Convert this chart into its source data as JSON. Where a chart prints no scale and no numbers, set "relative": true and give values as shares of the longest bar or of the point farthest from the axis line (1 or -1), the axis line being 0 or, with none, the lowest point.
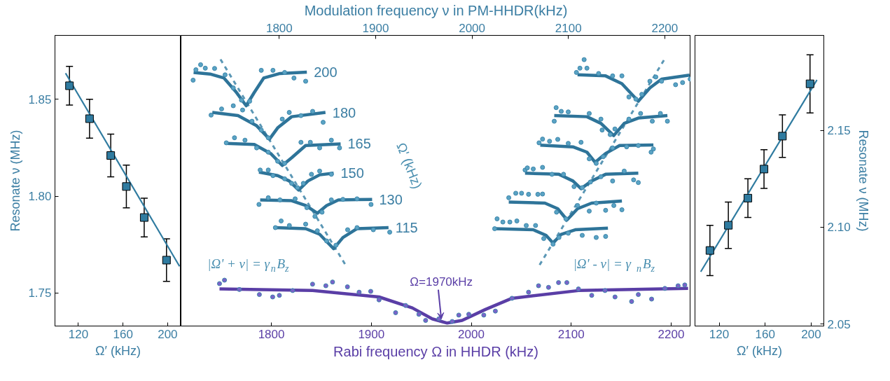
{
  "chart_data": [
    {
      "type": "scatter",
      "xlabel": "Ω′ (kHz)",
      "ylabel": "Resonate ν (MHz)",
      "xlim": [
        99,
        212
      ],
      "xticks": [
        120,
        160,
        200
      ],
      "ylim": [
        1.733,
        1.883
      ],
      "yticks": [
        1.75,
        {
          "value": 1.8,
          "label": "1.80"
        },
        1.85
      ],
      "grid": false,
      "series": [
        {
          "type": "line",
          "color": "#2f7ba0",
          "x": [
            108.5,
            210.7
          ],
          "values": [
            1.8635,
            1.7638
          ]
        },
        {
          "marker": "square",
          "color": "#2f7ba0",
          "x": [
            112,
            130,
            149,
            163,
            179,
            199
          ],
          "values": [
            1.857,
            1.84,
            1.821,
            1.805,
            1.789,
            1.767
          ],
          "errors": [
            0.01,
            0.01,
            0.011,
            0.011,
            0.01,
            0.011
          ]
        }
      ]
    },
    {
      "type": "line",
      "relative": true,
      "xlabel": "Rabi frequency Ω in HHDR (kHz)",
      "x2label": "Modulation frequency ν in PM-HHDR(kHz)",
      "xlim": [
        1709.6,
        2219.6
      ],
      "xticks": [
        1800,
        1900,
        2000,
        2100,
        2200
      ],
      "x2lim": [
        1698,
        2227
      ],
      "x2ticks": [
        1800,
        1900,
        2000,
        2100,
        2200
      ],
      "grid": false,
      "annotations": [
        "Ω' (kHz)",
        "|Ω' + ν| = γ$_{n}$B$_{z}$",
        "|Ω' - ν| = γ$_{n}$B$_{z}$",
        {
          "text": "Ω=1970kHz",
          "x": 1970,
          "y": 0.011
        }
      ],
      "series": [
        {
          "line_style": "dashed",
          "color": "#5b97b5",
          "x": [
            1749.1,
            1874.5
          ],
          "values": [
            1.0,
            0.227
          ]
        },
        {
          "line_style": "dashed",
          "color": "#5b97b5",
          "x": [
            2192.7,
            2068.0
          ],
          "values": [
            0.997,
            0.227
          ]
        },
        {
          "type": "scatter",
          "marker": "circle",
          "color": "#5aa3c4",
          "x": [
            1721.7,
            1724.5,
            1729.2,
            1733.9,
            1743.2,
            1753.7,
            1761.9,
            1770.1,
            1778.3,
            1789.9,
            1801.6,
            1813.3,
            1822.6,
            1834.3
          ],
          "values": [
            0.922,
            0.961,
            0.98,
            0.967,
            0.966,
            0.942,
            0.893,
            0.847,
            0.843,
            0.959,
            0.959,
            0.951,
            0.93,
            0.918
          ]
        },
        {
          "type": "scatter",
          "marker": "circle",
          "color": "#5aa3c4",
          "x": [
            1739.7,
            1750.2,
            1761.9,
            1771.2,
            1780.6,
            1789.9,
            1796.9,
            1810.9,
            1817.9,
            1829.6,
            1841.3,
            1851.8
          ],
          "values": [
            0.791,
            0.814,
            0.826,
            0.81,
            0.768,
            0.735,
            0.706,
            0.776,
            0.801,
            0.789,
            0.805,
            0.764
          ]
        },
        {
          "type": "scatter",
          "marker": "circle",
          "color": "#5aa3c4",
          "x": [
            1754.9,
            1763.1,
            1773.6,
            1785.3,
            1796.9,
            1806.3,
            1813.3,
            1829.6,
            1839.0,
            1848.3,
            1860.0,
            1868.2
          ],
          "values": [
            0.687,
            0.706,
            0.697,
            0.668,
            0.652,
            0.618,
            0.61,
            0.689,
            0.689,
            0.668,
            0.697,
            0.668
          ]
        },
        {
          "type": "scatter",
          "marker": "circle",
          "color": "#5aa3c4",
          "x": [
            1788.8,
            1796.9,
            1801.6,
            1813.3,
            1820.3,
            1826.1,
            1832.0,
            1840.1,
            1848.3,
            1860.0
          ],
          "values": [
            0.585,
            0.585,
            0.564,
            0.552,
            0.535,
            0.519,
            0.535,
            0.569,
            0.581,
            0.569
          ]
        },
        {
          "type": "scatter",
          "marker": "circle",
          "color": "#5aa3c4",
          "x": [
            1787.6,
            1796.9,
            1808.6,
            1823.8,
            1835.5,
            1843.6,
            1850.7,
            1860.0,
            1871.6,
            1885.7,
            1899.7
          ],
          "values": [
            0.456,
            0.481,
            0.473,
            0.477,
            0.444,
            0.411,
            0.427,
            0.473,
            0.475,
            0.477,
            0.456
          ]
        },
        {
          "type": "scatter",
          "marker": "circle",
          "color": "#5aa3c4",
          "x": [
            1804.0,
            1809.8,
            1818.0,
            1834.3,
            1846.0,
            1855.3,
            1864.6,
            1876.3,
            1885.7,
            1902.0,
            1918.4
          ],
          "values": [
            0.369,
            0.394,
            0.377,
            0.382,
            0.357,
            0.319,
            0.303,
            0.361,
            0.369,
            0.361,
            0.352
          ]
        },
        {
          "type": "scatter",
          "marker": "circle",
          "color": "#5aa3c4",
          "x": [
            2105.2,
            2108.7,
            2112.9,
            2115.7,
            2127.4,
            2141.4,
            2150.7,
            2157.7,
            2164.7,
            2170.6,
            2178.7,
            2184.6,
            2190.4,
            2204.4,
            2211.4,
            2219.0
          ],
          "values": [
            0.951,
            0.967,
            0.999,
            0.967,
            0.947,
            0.938,
            0.938,
            0.859,
            0.851,
            0.869,
            0.918,
            0.934,
            0.918,
            0.905,
            0.913,
            0.926
          ]
        },
        {
          "type": "scatter",
          "marker": "circle",
          "color": "#5aa3c4",
          "x": [
            2083.0,
            2084.9,
            2090.0,
            2097.0,
            2118.0,
            2129.7,
            2130.9,
            2139.0,
            2143.7,
            2157.7,
            2169.4,
            2181.1,
            2189.2,
            2196.2
          ],
          "values": [
            0.768,
            0.819,
            0.805,
            0.803,
            0.797,
            0.776,
            0.735,
            0.718,
            0.739,
            0.776,
            0.797,
            0.768,
            0.797,
            0.768
          ]
        },
        {
          "type": "scatter",
          "marker": "circle",
          "color": "#5aa3c4",
          "x": [
            2067.8,
            2071.3,
            2078.3,
            2086.5,
            2097.0,
            2109.8,
            2118.0,
            2125.0,
            2132.0,
            2141.4,
            2155.4,
            2167.1,
            2179.9,
            2182.2
          ],
          "values": [
            0.687,
            0.701,
            0.693,
            0.7,
            0.685,
            0.689,
            0.627,
            0.61,
            0.635,
            0.668,
            0.672,
            0.677,
            0.652,
            0.664
          ]
        },
        {
          "type": "scatter",
          "marker": "circle",
          "color": "#5aa3c4",
          "x": [
            2053.8,
            2056.1,
            2062.0,
            2071.3,
            2080.7,
            2092.3,
            2102.8,
            2111.0,
            2119.2,
            2129.7,
            2141.4,
            2153.0,
            2162.4,
            2167.1
          ],
          "values": [
            0.585,
            0.593,
            0.589,
            0.595,
            0.569,
            0.569,
            0.523,
            0.519,
            0.54,
            0.56,
            0.544,
            0.581,
            0.548,
            0.538
          ]
        },
        {
          "type": "scatter",
          "marker": "circle",
          "color": "#5aa3c4",
          "x": [
            2037.5,
            2044.5,
            2050.3,
            2057.3,
            2066.6,
            2071.3,
            2085.3,
            2094.7,
            2106.3,
            2118.0,
            2125.0,
            2134.4,
            2142.6,
            2150.7
          ],
          "values": [
            0.481,
            0.498,
            0.498,
            0.494,
            0.494,
            0.495,
            0.427,
            0.402,
            0.452,
            0.431,
            0.461,
            0.434,
            0.452,
            0.436
          ]
        },
        {
          "type": "scatter",
          "marker": "circle",
          "color": "#5aa3c4",
          "x": [
            2023.4,
            2025.8,
            2031.6,
            2038.6,
            2045.6,
            2055.0,
            2064.3,
            2072.5,
            2081.8,
            2087.7,
            2097.0,
            2111.0,
            2125.0,
            2134.4
          ],
          "values": [
            0.365,
            0.402,
            0.39,
            0.39,
            0.394,
            0.377,
            0.377,
            0.328,
            0.307,
            0.332,
            0.348,
            0.34,
            0.332,
            0.336
          ]
        },
        {
          "name": "200",
          "color": "#2e7499",
          "x": [
            1722.2,
            1738.6,
            1752.6,
            1764.2,
            1774.8,
            1782.9,
            1792.3,
            1808.6,
            1835.5
          ],
          "values": [
            0.951,
            0.945,
            0.93,
            0.88,
            0.826,
            0.876,
            0.93,
            0.947,
            0.952
          ]
        },
        {
          "name": "180",
          "color": "#2e7499",
          "x": [
            1740.9,
            1766.6,
            1785.3,
            1798.1,
            1806.3,
            1820.3,
            1854.1
          ],
          "values": [
            0.801,
            0.789,
            0.751,
            0.701,
            0.743,
            0.785,
            0.801
          ]
        },
        {
          "name": "165",
          "color": "#2e7499",
          "x": [
            1754.9,
            1782.9,
            1799.3,
            1810.9,
            1820.3,
            1834.3,
            1869.3
          ],
          "values": [
            0.685,
            0.681,
            0.647,
            0.602,
            0.631,
            0.677,
            0.683
          ]
        },
        {
          "name": "150",
          "color": "#2e7499",
          "x": [
            1787.6,
            1806.3,
            1817.9,
            1827.3,
            1836.6,
            1848.3,
            1862.3
          ],
          "values": [
            0.577,
            0.564,
            0.544,
            0.51,
            0.544,
            0.567,
            0.573
          ]
        },
        {
          "name": "130",
          "color": "#2e7499",
          "x": [
            1788.8,
            1820.3,
            1834.3,
            1846.0,
            1855.3,
            1867.0,
            1900.8
          ],
          "values": [
            0.473,
            0.47,
            0.452,
            0.423,
            0.452,
            0.473,
            0.475
          ]
        },
        {
          "name": "115",
          "color": "#2e7499",
          "x": [
            1804.0,
            1834.3,
            1848.3,
            1862.3,
            1871.6,
            1885.7,
            1917.2
          ],
          "values": [
            0.369,
            0.365,
            0.344,
            0.29,
            0.332,
            0.365,
            0.369
          ]
        },
        {
          "color": "#2e7499",
          "x": [
            2106.3,
            2134.4,
            2150.7,
            2167.1,
            2178.7,
            2190.4,
            2218.4
          ],
          "values": [
            0.942,
            0.938,
            0.909,
            0.843,
            0.893,
            0.926,
            0.941
          ]
        },
        {
          "color": "#2e7499",
          "x": [
            2083.0,
            2115.7,
            2129.7,
            2142.5,
            2153.0,
            2167.1,
            2196.2
          ],
          "values": [
            0.789,
            0.785,
            0.76,
            0.714,
            0.76,
            0.78,
            0.789
          ]
        },
        {
          "color": "#2e7499",
          "x": [
            2069.0,
            2101.7,
            2115.7,
            2123.9,
            2134.4,
            2148.4,
            2182.2
          ],
          "values": [
            0.678,
            0.672,
            0.652,
            0.614,
            0.647,
            0.677,
            0.679
          ]
        },
        {
          "color": "#2e7499",
          "x": [
            2053.8,
            2087.7,
            2101.7,
            2109.8,
            2120.4,
            2134.4,
            2167.1
          ],
          "values": [
            0.573,
            0.569,
            0.544,
            0.515,
            0.544,
            0.569,
            0.573
          ]
        },
        {
          "color": "#2e7499",
          "x": [
            2037.5,
            2073.7,
            2086.5,
            2095.8,
            2106.3,
            2120.4,
            2150.7
          ],
          "values": [
            0.465,
            0.461,
            0.44,
            0.398,
            0.44,
            0.461,
            0.469
          ]
        },
        {
          "color": "#2e7499",
          "x": [
            2023.4,
            2062.0,
            2074.8,
            2081.8,
            2090.0,
            2104.0,
            2136.7
          ],
          "values": [
            0.365,
            0.361,
            0.34,
            0.311,
            0.344,
            0.361,
            0.367
          ]
        },
        {
          "type": "scatter",
          "marker": "circle",
          "color": "#7b62c9",
          "x": [
            1748.1,
            1753.1,
            1768.0,
            1788.0,
            1801.3,
            1808.0,
            1821.3,
            1841.2,
            1854.5,
            1861.2,
            1876.1,
            1887.8,
            1899.4,
            1907.7,
            1924.3,
            1934.3,
            1947.6,
            1954.3,
            1967.6,
            1980.9,
            1987.5,
            1997.5,
            2012.5,
            2024.1,
            2040.7,
            2057.3,
            2067.3,
            2077.3,
            2087.3,
            2095.6,
            2107.2,
            2120.5,
            2133.8,
            2143.8,
            2160.4,
            2167.1,
            2180.4,
            2193.7,
            2206.9,
            2213.6
          ],
          "values": [
            0.159,
            0.172,
            0.137,
            0.118,
            0.109,
            0.115,
            0.133,
            0.157,
            0.151,
            0.165,
            0.147,
            0.127,
            0.13,
            0.098,
            0.05,
            0.077,
            0.044,
            0.021,
            0.027,
            0.017,
            0.041,
            0.044,
            0.041,
            0.056,
            0.104,
            0.127,
            0.151,
            0.145,
            0.163,
            0.163,
            0.139,
            0.115,
            0.133,
            0.109,
            0.092,
            0.118,
            0.101,
            0.141,
            0.151,
            0.154
          ]
        },
        {
          "color": "#5a3ea6",
          "x": [
            1748.1,
            1841.2,
            1907.7,
            1941.0,
            1960.9,
            1975.9,
            1990.8,
            2014.1,
            2040.7,
            2107.2,
            2216.9
          ],
          "values": [
            0.139,
            0.133,
            0.109,
            0.068,
            0.027,
            0.011,
            0.021,
            0.062,
            0.104,
            0.133,
            0.141
          ]
        }
      ]
    },
    {
      "type": "scatter",
      "xlabel": "Ω′ (kHz)",
      "y2label": "Resonate ν (MHz)",
      "xlim": [
        99,
        211
      ],
      "xticks": [
        120,
        160,
        200
      ],
      "y2lim": [
        2.049,
        2.199
      ],
      "y2ticks": [
        2.05,
        {
          "value": 2.1,
          "label": "2.10"
        },
        2.15
      ],
      "grid": false,
      "series": [
        {
          "type": "line",
          "axis": "y2",
          "color": "#2f7ba0",
          "x": [
            104,
            205
          ],
          "values": [
            2.077,
            2.176
          ]
        },
        {
          "axis": "y2",
          "marker": "square",
          "color": "#2f7ba0",
          "x": [
            112,
            128,
            145,
            159,
            175,
            199
          ],
          "values": [
            2.088,
            2.101,
            2.115,
            2.13,
            2.147,
            2.174
          ],
          "errors": [
            0.013,
            0.012,
            0.01,
            0.01,
            0.011,
            0.015
          ]
        }
      ]
    }
  ]
}
